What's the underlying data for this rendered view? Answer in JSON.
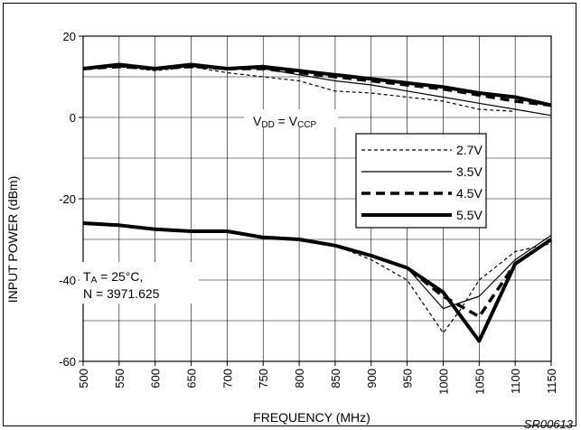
{
  "chart_data": {
    "type": "line",
    "title": "",
    "xlabel": "FREQUENCY (MHz)",
    "ylabel": "INPUT POWER (dBm)",
    "xlim": [
      500,
      1150
    ],
    "ylim": [
      -60,
      20
    ],
    "x_ticks": [
      500,
      550,
      600,
      650,
      700,
      750,
      800,
      850,
      900,
      950,
      1000,
      1050,
      1100,
      1150
    ],
    "y_ticks": [
      -60,
      -40,
      -20,
      0,
      20
    ],
    "grid": true,
    "legend_title_parts": {
      "v1": "V",
      "s1": "DD",
      "eq": " = V",
      "s2": "CCP"
    },
    "legend_placement": "center-right",
    "annotation": {
      "line1_main": "T",
      "line1_sub": "A",
      "line1_rest": " = 25°C,",
      "line2": "N = 3971.625"
    },
    "figure_id": "SR00613",
    "series": [
      {
        "name": "2.7V",
        "style": "dotted-thin",
        "upper": {
          "x": [
            500,
            550,
            600,
            650,
            700,
            750,
            800,
            850,
            900,
            950,
            1000,
            1050,
            1100
          ],
          "y": [
            12,
            12.5,
            11.5,
            12.5,
            11,
            10,
            9,
            6.5,
            6,
            5,
            4,
            2,
            1.5
          ]
        },
        "lower": {
          "x": [
            500,
            550,
            600,
            650,
            700,
            750,
            800,
            850,
            900,
            950,
            1000,
            1025,
            1050,
            1100,
            1150
          ],
          "y": [
            -26,
            -26.5,
            -27.5,
            -28,
            -28,
            -29.5,
            -30,
            -31.5,
            -35,
            -40,
            -53,
            -47,
            -40,
            -33,
            -31
          ]
        }
      },
      {
        "name": "3.5V",
        "style": "solid-thin",
        "upper": {
          "x": [
            500,
            550,
            600,
            650,
            700,
            750,
            800,
            850,
            900,
            950,
            1000,
            1050,
            1100,
            1150
          ],
          "y": [
            12,
            12.5,
            12,
            12.5,
            12,
            12,
            10.5,
            9,
            8,
            6.5,
            5,
            3.5,
            2,
            0.5
          ]
        },
        "lower": {
          "x": [
            500,
            550,
            600,
            650,
            700,
            750,
            800,
            850,
            900,
            950,
            1000,
            1050,
            1100,
            1150
          ],
          "y": [
            -26,
            -26.5,
            -27.5,
            -28,
            -28,
            -29.5,
            -30,
            -31.5,
            -34,
            -37,
            -47,
            -44,
            -35,
            -29
          ]
        }
      },
      {
        "name": "4.5V",
        "style": "dashed-thick",
        "upper": {
          "x": [
            500,
            550,
            600,
            650,
            700,
            750,
            800,
            850,
            900,
            950,
            1000,
            1050,
            1100,
            1150
          ],
          "y": [
            12,
            12.5,
            12,
            12.5,
            12,
            12,
            11,
            10,
            9,
            8,
            7,
            5.5,
            4,
            3
          ]
        },
        "lower": {
          "x": [
            500,
            550,
            600,
            650,
            700,
            750,
            800,
            850,
            900,
            950,
            1000,
            1050,
            1100,
            1150
          ],
          "y": [
            -26,
            -26.5,
            -27.5,
            -28,
            -28,
            -29.5,
            -30,
            -31.5,
            -34,
            -37,
            -44,
            -49,
            -36,
            -30
          ]
        }
      },
      {
        "name": "5.5V",
        "style": "solid-heavy",
        "upper": {
          "x": [
            500,
            550,
            600,
            650,
            700,
            750,
            800,
            850,
            900,
            950,
            1000,
            1050,
            1100,
            1150
          ],
          "y": [
            12,
            13,
            12,
            13,
            12,
            12.5,
            11.5,
            10.5,
            9.5,
            8.5,
            7.5,
            6,
            5,
            3
          ]
        },
        "lower": {
          "x": [
            500,
            550,
            600,
            650,
            700,
            750,
            800,
            850,
            900,
            950,
            1000,
            1050,
            1100,
            1150
          ],
          "y": [
            -26,
            -26.5,
            -27.5,
            -28,
            -28,
            -29.5,
            -30,
            -31.5,
            -34,
            -37,
            -43,
            -55,
            -36,
            -30
          ]
        }
      }
    ]
  }
}
